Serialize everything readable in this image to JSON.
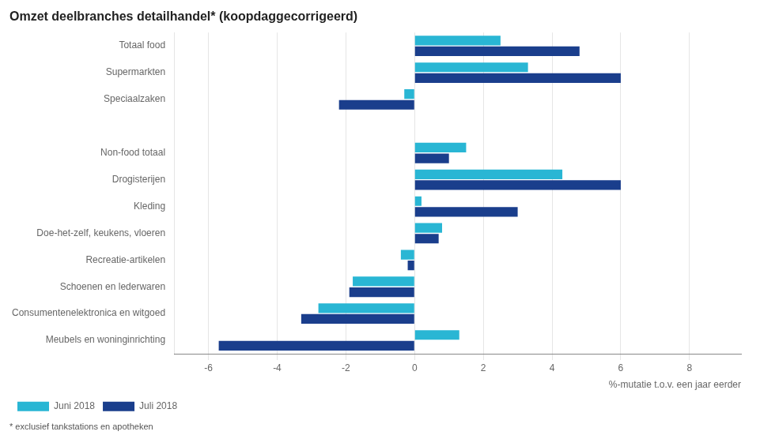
{
  "chart_data": {
    "type": "bar",
    "orientation": "horizontal",
    "title": "Omzet deelbranches detailhandel* (koopdaggecorrigeerd)",
    "categories": [
      "Totaal food",
      "Supermarkten",
      "Speciaalzaken",
      null,
      "Non-food totaal",
      "Drogisterijen",
      "Kleding",
      "Doe-het-zelf, keukens, vloeren",
      "Recreatie-artikelen",
      "Schoenen en lederwaren",
      "Consumentenelektronica en witgoed",
      "Meubels en woninginrichting"
    ],
    "series": [
      {
        "name": "Juni 2018",
        "color": "#29b6d4",
        "values": [
          2.5,
          3.3,
          -0.3,
          0.0,
          1.5,
          4.3,
          0.2,
          0.8,
          -0.4,
          -1.8,
          -2.8,
          1.3
        ]
      },
      {
        "name": "Juli 2018",
        "color": "#1a3e8c",
        "values": [
          4.8,
          6.0,
          -2.2,
          0.0,
          1.0,
          6.0,
          3.0,
          0.7,
          -0.2,
          -1.9,
          -3.3,
          -5.7
        ]
      }
    ],
    "xlabel": "%-mutatie t.o.v. een jaar eerder",
    "xlim": [
      -7,
      9.5
    ],
    "xticks": [
      -6,
      -4,
      -2,
      0,
      2,
      4,
      6,
      8
    ],
    "grid": true,
    "legend": "lower left",
    "annotations": [
      "* exclusief tankstations en apotheken"
    ]
  }
}
